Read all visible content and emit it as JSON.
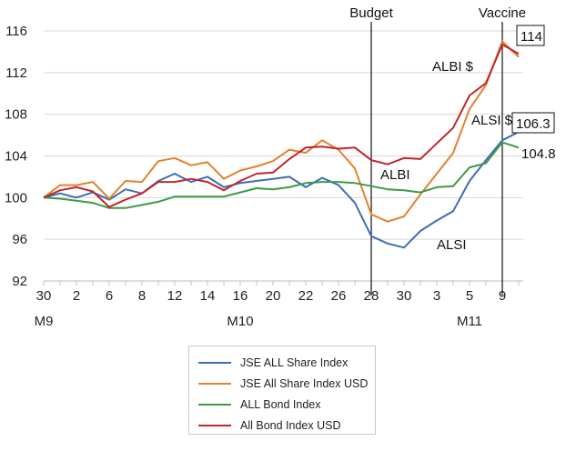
{
  "chart_data": {
    "type": "line",
    "title": "",
    "xlabel": "",
    "ylabel": "",
    "ylim": [
      92,
      116
    ],
    "yticks": [
      92,
      96,
      100,
      104,
      108,
      112,
      116
    ],
    "x_tick_labels": [
      "30",
      "2",
      "6",
      "8",
      "12",
      "14",
      "16",
      "20",
      "22",
      "26",
      "28",
      "30",
      "3",
      "5",
      "9"
    ],
    "month_labels": [
      "M9",
      "M10",
      "M11"
    ],
    "grid": "horizontal",
    "legend_position": "bottom",
    "vertical_markers": [
      "Budget",
      "Vaccine"
    ],
    "series": [
      {
        "name": "JSE ALL Share Index",
        "color": "#3d6eb4",
        "values": [
          100,
          100.4,
          100,
          100.5,
          99.8,
          100.8,
          100.4,
          101.6,
          102.3,
          101.5,
          102,
          101,
          101.4,
          101.6,
          101.8,
          102,
          101,
          101.9,
          101.2,
          99.5,
          96.3,
          95.6,
          95.2,
          96.8,
          97.8,
          98.7,
          101.6,
          103.6,
          105.5,
          106.3
        ]
      },
      {
        "name": "JSE All Share Index USD",
        "color": "#e2812e",
        "values": [
          100,
          101.2,
          101.2,
          101.5,
          99.9,
          101.6,
          101.5,
          103.5,
          103.8,
          103.1,
          103.4,
          101.8,
          102.6,
          103,
          103.5,
          104.6,
          104.3,
          105.5,
          104.6,
          102.8,
          98.4,
          97.7,
          98.2,
          100.3,
          102.3,
          104.3,
          108.5,
          110.8,
          115,
          113.5
        ]
      },
      {
        "name": "ALL Bond Index",
        "color": "#3d9a48",
        "values": [
          100,
          99.9,
          99.7,
          99.5,
          99,
          99,
          99.3,
          99.6,
          100.1,
          100.1,
          100.1,
          100.1,
          100.5,
          100.9,
          100.8,
          101,
          101.4,
          101.5,
          101.5,
          101.4,
          101.1,
          100.8,
          100.7,
          100.5,
          101,
          101.1,
          102.9,
          103.3,
          105.3,
          104.8
        ]
      },
      {
        "name": "All Bond Index USD",
        "color": "#c0272d",
        "values": [
          100,
          100.7,
          101,
          100.6,
          99.1,
          99.8,
          100.4,
          101.5,
          101.5,
          101.8,
          101.5,
          100.7,
          101.6,
          102.3,
          102.4,
          103.7,
          104.8,
          104.9,
          104.7,
          104.8,
          103.6,
          103.2,
          103.8,
          103.7,
          105.2,
          106.7,
          109.8,
          111,
          114.7,
          113.8
        ]
      }
    ],
    "annotations": {
      "albi_usd": "ALBI $",
      "alsi_usd": "ALSI $",
      "albi": "ALBI",
      "alsi": "ALSI",
      "box_114": "114",
      "box_106": "106.3",
      "label_1048": "104.8"
    }
  }
}
